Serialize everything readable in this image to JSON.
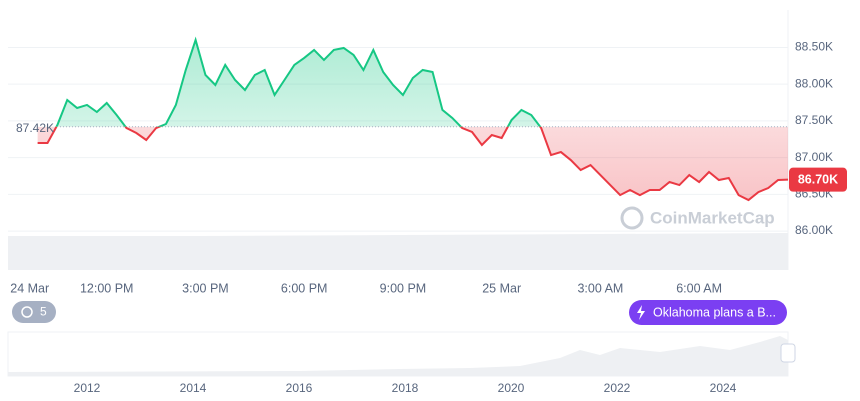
{
  "chart_data": {
    "type": "line",
    "values": [
      null,
      null,
      null,
      87199,
      87199,
      87444,
      87785,
      87676,
      87717,
      87621,
      87744,
      87580,
      87403,
      87335,
      87240,
      87403,
      87458,
      87717,
      88193,
      88602,
      88125,
      87989,
      88262,
      88057,
      87921,
      88125,
      88193,
      87853,
      88057,
      88262,
      88357,
      88466,
      88330,
      88466,
      88493,
      88398,
      88193,
      88466,
      88166,
      87989,
      87853,
      88084,
      88193,
      88166,
      87649,
      87540,
      87403,
      87349,
      87172,
      87308,
      87267,
      87512,
      87649,
      87580,
      87403,
      87035,
      87076,
      86967,
      86831,
      86899,
      86763,
      86627,
      86490,
      86559,
      86490,
      86559,
      86559,
      86668,
      86627,
      86763,
      86668,
      86804,
      86695,
      86722,
      86490,
      86422,
      86531,
      86586,
      86695,
      86700
    ],
    "baseline": 87420,
    "baseline_label": "87.42K",
    "last_label": "86.70K",
    "up_color": "#16c784",
    "down_color": "#ea3943",
    "xlim": [
      0,
      79
    ],
    "xticks": [
      {
        "value": 2.2,
        "label": "24 Mar"
      },
      {
        "value": 10,
        "label": "12:00 PM"
      },
      {
        "value": 20,
        "label": "3:00 PM"
      },
      {
        "value": 30,
        "label": "6:00 PM"
      },
      {
        "value": 40,
        "label": "9:00 PM"
      },
      {
        "value": 50,
        "label": "25 Mar"
      },
      {
        "value": 60,
        "label": "3:00 AM"
      },
      {
        "value": 70,
        "label": "6:00 AM"
      }
    ],
    "ylim": [
      85470,
      89010
    ],
    "yticks": [
      {
        "value": 86000,
        "label": "86.00K"
      },
      {
        "value": 86500,
        "label": "86.50K"
      },
      {
        "value": 87000,
        "label": "87.00K"
      },
      {
        "value": 87500,
        "label": "87.50K"
      },
      {
        "value": 88000,
        "label": "88.00K"
      },
      {
        "value": 88500,
        "label": "88.50K"
      }
    ],
    "grid": true,
    "watermark": "CoinMarketCap",
    "history_badge": "5",
    "news": "Oklahoma plans a B...",
    "navigator": {
      "years": [
        "2012",
        "2014",
        "2016",
        "2018",
        "2020",
        "2022",
        "2024"
      ]
    }
  }
}
